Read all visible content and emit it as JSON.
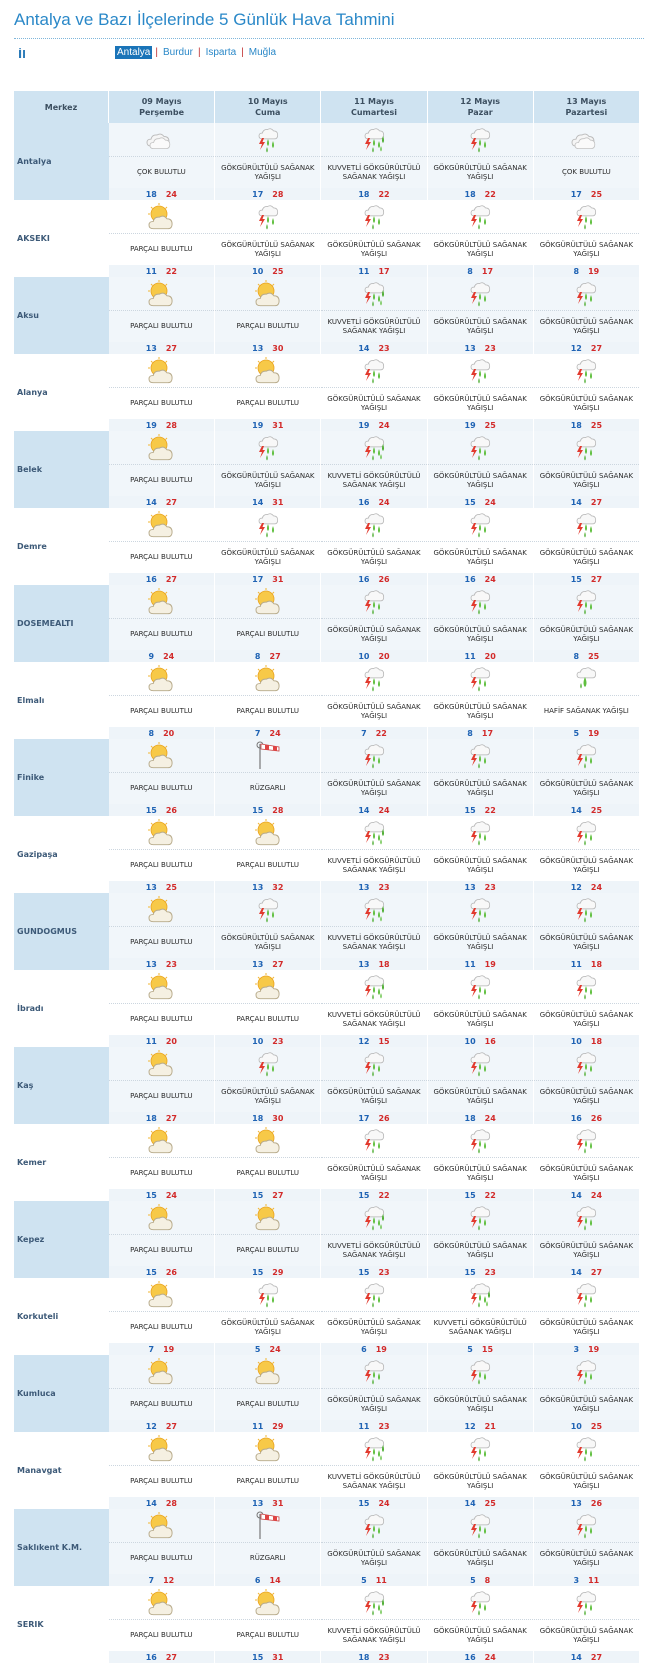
{
  "page": {
    "title": "Antalya ve Bazı İlçelerinde 5 Günlük Hava Tahmini",
    "il_label": "İl",
    "provinces": [
      "Antalya",
      "Burdur",
      "Isparta",
      "Muğla"
    ],
    "selected_province": "Antalya"
  },
  "table": {
    "merkez_header": "Merkez",
    "days": [
      {
        "date": "09 Mayıs",
        "weekday": "Perşembe"
      },
      {
        "date": "10 Mayıs",
        "weekday": "Cuma"
      },
      {
        "date": "11 Mayıs",
        "weekday": "Cumartesi"
      },
      {
        "date": "12 Mayıs",
        "weekday": "Pazar"
      },
      {
        "date": "13 Mayıs",
        "weekday": "Pazartesi"
      }
    ]
  },
  "weather_types": {
    "cok": {
      "text": "ÇOK BULUTLU",
      "icon": "cloudy-icon"
    },
    "parcali": {
      "text": "PARÇALI BULUTLU",
      "icon": "partly-cloudy-icon"
    },
    "gsy": {
      "text": "GÖKGÜRÜLTÜLÜ SAĞANAK YAĞIŞLI",
      "icon": "thunder-shower-icon"
    },
    "kgsy": {
      "text": "KUVVETLİ GÖKGÜRÜLTÜLÜ SAĞANAK YAĞIŞLI",
      "icon": "heavy-thunder-shower-icon"
    },
    "hafif": {
      "text": "HAFİF SAĞANAK YAĞIŞLI",
      "icon": "light-shower-icon"
    },
    "ruzgarli": {
      "text": "RÜZGARLI",
      "icon": "windsock-icon"
    }
  },
  "cities": [
    {
      "name": "Antalya",
      "forecast": [
        [
          "cok",
          18,
          24
        ],
        [
          "gsy",
          17,
          28
        ],
        [
          "kgsy",
          18,
          22
        ],
        [
          "gsy",
          18,
          22
        ],
        [
          "cok",
          17,
          25
        ]
      ]
    },
    {
      "name": "AKSEKI",
      "forecast": [
        [
          "parcali",
          11,
          22
        ],
        [
          "gsy",
          10,
          25
        ],
        [
          "gsy",
          11,
          17
        ],
        [
          "gsy",
          8,
          17
        ],
        [
          "gsy",
          8,
          19
        ]
      ]
    },
    {
      "name": "Aksu",
      "forecast": [
        [
          "parcali",
          13,
          27
        ],
        [
          "parcali",
          13,
          30
        ],
        [
          "kgsy",
          14,
          23
        ],
        [
          "gsy",
          13,
          23
        ],
        [
          "gsy",
          12,
          27
        ]
      ]
    },
    {
      "name": "Alanya",
      "forecast": [
        [
          "parcali",
          19,
          28
        ],
        [
          "parcali",
          19,
          31
        ],
        [
          "gsy",
          19,
          24
        ],
        [
          "gsy",
          19,
          25
        ],
        [
          "gsy",
          18,
          25
        ]
      ]
    },
    {
      "name": "Belek",
      "forecast": [
        [
          "parcali",
          14,
          27
        ],
        [
          "gsy",
          14,
          31
        ],
        [
          "kgsy",
          16,
          24
        ],
        [
          "gsy",
          15,
          24
        ],
        [
          "gsy",
          14,
          27
        ]
      ]
    },
    {
      "name": "Demre",
      "forecast": [
        [
          "parcali",
          16,
          27
        ],
        [
          "gsy",
          17,
          31
        ],
        [
          "gsy",
          16,
          26
        ],
        [
          "gsy",
          16,
          24
        ],
        [
          "gsy",
          15,
          27
        ]
      ]
    },
    {
      "name": "DOSEMEALTI",
      "forecast": [
        [
          "parcali",
          9,
          24
        ],
        [
          "parcali",
          8,
          27
        ],
        [
          "gsy",
          10,
          20
        ],
        [
          "gsy",
          11,
          20
        ],
        [
          "gsy",
          8,
          25
        ]
      ]
    },
    {
      "name": "Elmalı",
      "forecast": [
        [
          "parcali",
          8,
          20
        ],
        [
          "parcali",
          7,
          24
        ],
        [
          "gsy",
          7,
          22
        ],
        [
          "gsy",
          8,
          17
        ],
        [
          "hafif",
          5,
          19
        ]
      ]
    },
    {
      "name": "Finike",
      "forecast": [
        [
          "parcali",
          15,
          26
        ],
        [
          "ruzgarli",
          15,
          28
        ],
        [
          "gsy",
          14,
          24
        ],
        [
          "gsy",
          15,
          22
        ],
        [
          "gsy",
          14,
          25
        ]
      ]
    },
    {
      "name": "Gazipaşa",
      "forecast": [
        [
          "parcali",
          13,
          25
        ],
        [
          "parcali",
          13,
          32
        ],
        [
          "kgsy",
          13,
          23
        ],
        [
          "gsy",
          13,
          23
        ],
        [
          "gsy",
          12,
          24
        ]
      ]
    },
    {
      "name": "GUNDOGMUS",
      "forecast": [
        [
          "parcali",
          13,
          23
        ],
        [
          "gsy",
          13,
          27
        ],
        [
          "kgsy",
          13,
          18
        ],
        [
          "gsy",
          11,
          19
        ],
        [
          "gsy",
          11,
          18
        ]
      ]
    },
    {
      "name": "İbradı",
      "forecast": [
        [
          "parcali",
          11,
          20
        ],
        [
          "parcali",
          10,
          23
        ],
        [
          "kgsy",
          12,
          15
        ],
        [
          "gsy",
          10,
          16
        ],
        [
          "gsy",
          10,
          18
        ]
      ]
    },
    {
      "name": "Kaş",
      "forecast": [
        [
          "parcali",
          18,
          27
        ],
        [
          "gsy",
          18,
          30
        ],
        [
          "gsy",
          17,
          26
        ],
        [
          "gsy",
          18,
          24
        ],
        [
          "gsy",
          16,
          26
        ]
      ]
    },
    {
      "name": "Kemer",
      "forecast": [
        [
          "parcali",
          15,
          24
        ],
        [
          "parcali",
          15,
          27
        ],
        [
          "gsy",
          15,
          22
        ],
        [
          "gsy",
          15,
          22
        ],
        [
          "gsy",
          14,
          24
        ]
      ]
    },
    {
      "name": "Kepez",
      "forecast": [
        [
          "parcali",
          15,
          26
        ],
        [
          "parcali",
          15,
          29
        ],
        [
          "kgsy",
          15,
          23
        ],
        [
          "gsy",
          15,
          23
        ],
        [
          "gsy",
          14,
          27
        ]
      ]
    },
    {
      "name": "Korkuteli",
      "forecast": [
        [
          "parcali",
          7,
          19
        ],
        [
          "gsy",
          5,
          24
        ],
        [
          "gsy",
          6,
          19
        ],
        [
          "kgsy",
          5,
          15
        ],
        [
          "gsy",
          3,
          19
        ]
      ]
    },
    {
      "name": "Kumluca",
      "forecast": [
        [
          "parcali",
          12,
          27
        ],
        [
          "parcali",
          11,
          29
        ],
        [
          "gsy",
          11,
          23
        ],
        [
          "gsy",
          12,
          21
        ],
        [
          "gsy",
          10,
          25
        ]
      ]
    },
    {
      "name": "Manavgat",
      "forecast": [
        [
          "parcali",
          14,
          28
        ],
        [
          "parcali",
          13,
          31
        ],
        [
          "kgsy",
          15,
          24
        ],
        [
          "gsy",
          14,
          25
        ],
        [
          "gsy",
          13,
          26
        ]
      ]
    },
    {
      "name": "Saklıkent K.M.",
      "forecast": [
        [
          "parcali",
          7,
          12
        ],
        [
          "ruzgarli",
          6,
          14
        ],
        [
          "gsy",
          5,
          11
        ],
        [
          "gsy",
          5,
          8
        ],
        [
          "gsy",
          3,
          11
        ]
      ]
    },
    {
      "name": "SERIK",
      "forecast": [
        [
          "parcali",
          16,
          27
        ],
        [
          "parcali",
          15,
          31
        ],
        [
          "kgsy",
          18,
          23
        ],
        [
          "gsy",
          16,
          24
        ],
        [
          "gsy",
          14,
          27
        ]
      ]
    }
  ]
}
